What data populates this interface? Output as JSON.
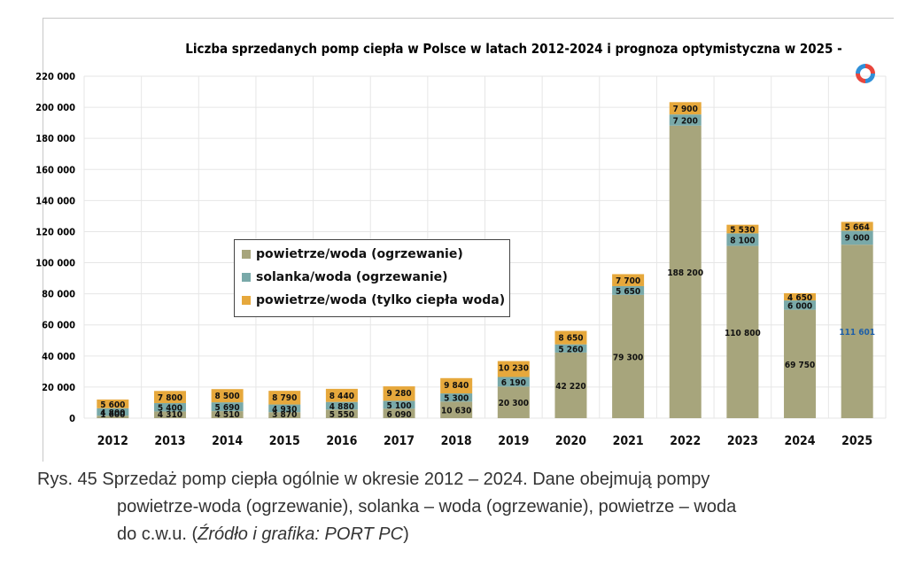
{
  "chart_data": {
    "type": "bar",
    "stacked": true,
    "title": "Liczba sprzedanych pomp ciepła w Polsce w latach 2012-2024 i  prognoza optymistyczna w 2025 -",
    "categories": [
      "2012",
      "2013",
      "2014",
      "2015",
      "2016",
      "2017",
      "2018",
      "2019",
      "2020",
      "2021",
      "2022",
      "2023",
      "2024",
      "2025"
    ],
    "ylim": [
      0,
      220000
    ],
    "yticks": [
      "0",
      "20 000",
      "40 000",
      "60 000",
      "80 000",
      "100 000",
      "120 000",
      "140 000",
      "160 000",
      "180 000",
      "200 000",
      "220 000"
    ],
    "series": [
      {
        "name": "powietrze/woda (ogrzewanie)",
        "values": [
          1600,
          4310,
          4510,
          3870,
          5550,
          6090,
          10630,
          20300,
          42220,
          79300,
          188200,
          110800,
          69750,
          111601
        ],
        "labels": [
          "1 600",
          "4 310",
          "4 510",
          "3 870",
          "5 550",
          "6 090",
          "10 630",
          "20 300",
          "42 220",
          "79 300",
          "188 200",
          "110 800",
          "69 750",
          "111 601"
        ],
        "color": "#a7a57c"
      },
      {
        "name": "solanka/woda (ogrzewanie)",
        "values": [
          4800,
          5400,
          5690,
          4930,
          4880,
          5100,
          5300,
          6190,
          5260,
          5650,
          7200,
          8100,
          6000,
          9000
        ],
        "labels": [
          "4 800",
          "5 400",
          "5 690",
          "4 930",
          "4 880",
          "5 100",
          "5 300",
          "6 190",
          "5 260",
          "5 650",
          "7 200",
          "8 100",
          "6 000",
          "9 000"
        ],
        "color": "#79a9a9"
      },
      {
        "name": "powietrze/woda (tylko ciepła woda)",
        "values": [
          5600,
          7800,
          8500,
          8790,
          8440,
          9280,
          9840,
          10230,
          8650,
          7700,
          7900,
          5530,
          4650,
          5664
        ],
        "labels": [
          "5 600",
          "7 800",
          "8 500",
          "8 790",
          "8 440",
          "9 280",
          "9 840",
          "10 230",
          "8 650",
          "7 700",
          "7 900",
          "5 530",
          "4 650",
          "5 664"
        ],
        "color": "#e6a83c"
      }
    ],
    "grid": true,
    "legend_position": "center-left"
  },
  "caption": {
    "line1": "Rys. 45 Sprzedaż pomp ciepła ogólnie w okresie 2012 –    2024. Dane obejmują pompy",
    "line2": "powietrze-woda (ogrzewanie), solanka – woda (ogrzewanie), powietrze – woda",
    "line3_plain": "do c.w.u. (",
    "line3_italic": "Źródło i grafika: PORT PC",
    "line3_end": ")"
  },
  "colors": {
    "grid": "#e6e6e6",
    "axis_text": "#000000"
  }
}
